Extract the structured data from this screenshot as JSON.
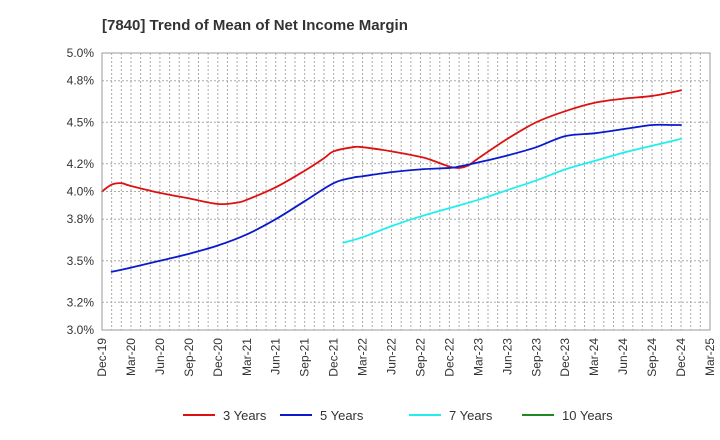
{
  "chart_data": {
    "type": "line",
    "title": "[7840]  Trend of Mean of Net Income Margin",
    "xlabel": "",
    "ylabel": "",
    "x_ticks": [
      "Dec-19",
      "Mar-20",
      "Jun-20",
      "Sep-20",
      "Dec-20",
      "Mar-21",
      "Jun-21",
      "Sep-21",
      "Dec-21",
      "Mar-22",
      "Jun-22",
      "Sep-22",
      "Dec-22",
      "Mar-23",
      "Jun-23",
      "Sep-23",
      "Dec-23",
      "Mar-24",
      "Jun-24",
      "Sep-24",
      "Dec-24",
      "Mar-25"
    ],
    "y_ticks": [
      "3.0%",
      "3.2%",
      "3.5%",
      "3.8%",
      "4.0%",
      "4.2%",
      "4.5%",
      "4.8%",
      "5.0%"
    ],
    "ylim": [
      3.0,
      5.0
    ],
    "grid": true,
    "legend_position": "bottom",
    "series": [
      {
        "name": "3 Years",
        "color": "#dd1111",
        "points": [
          [
            "Dec-19",
            4.0
          ],
          [
            "Jan-20",
            4.05
          ],
          [
            "Feb-20",
            4.06
          ],
          [
            "Mar-20",
            4.04
          ],
          [
            "Jun-20",
            3.99
          ],
          [
            "Sep-20",
            3.95
          ],
          [
            "Dec-20",
            3.91
          ],
          [
            "Feb-21",
            3.92
          ],
          [
            "Mar-21",
            3.94
          ],
          [
            "Jun-21",
            4.03
          ],
          [
            "Sep-21",
            4.15
          ],
          [
            "Nov-21",
            4.24
          ],
          [
            "Dec-21",
            4.29
          ],
          [
            "Feb-22",
            4.32
          ],
          [
            "Mar-22",
            4.32
          ],
          [
            "Jun-22",
            4.29
          ],
          [
            "Sep-22",
            4.25
          ],
          [
            "Oct-22",
            4.23
          ],
          [
            "Dec-22",
            4.18
          ],
          [
            "Jan-23",
            4.17
          ],
          [
            "Feb-23",
            4.19
          ],
          [
            "Mar-23",
            4.24
          ],
          [
            "Jun-23",
            4.38
          ],
          [
            "Sep-23",
            4.5
          ],
          [
            "Dec-23",
            4.58
          ],
          [
            "Mar-24",
            4.64
          ],
          [
            "Jun-24",
            4.67
          ],
          [
            "Sep-24",
            4.69
          ],
          [
            "Dec-24",
            4.73
          ]
        ]
      },
      {
        "name": "5 Years",
        "color": "#0a1acc",
        "points": [
          [
            "Dec-19",
            null
          ],
          [
            "Jan-20",
            3.42
          ],
          [
            "Mar-20",
            3.45
          ],
          [
            "Jun-20",
            3.5
          ],
          [
            "Sep-20",
            3.55
          ],
          [
            "Dec-20",
            3.61
          ],
          [
            "Mar-21",
            3.69
          ],
          [
            "Jun-21",
            3.8
          ],
          [
            "Sep-21",
            3.93
          ],
          [
            "Dec-21",
            4.06
          ],
          [
            "Feb-22",
            4.1
          ],
          [
            "Mar-22",
            4.11
          ],
          [
            "Jun-22",
            4.14
          ],
          [
            "Sep-22",
            4.16
          ],
          [
            "Dec-22",
            4.17
          ],
          [
            "Jan-23",
            4.18
          ],
          [
            "Mar-23",
            4.21
          ],
          [
            "Jun-23",
            4.26
          ],
          [
            "Sep-23",
            4.32
          ],
          [
            "Dec-23",
            4.4
          ],
          [
            "Mar-24",
            4.42
          ],
          [
            "Jun-24",
            4.45
          ],
          [
            "Sep-24",
            4.48
          ],
          [
            "Nov-24",
            4.48
          ],
          [
            "Dec-24",
            4.48
          ]
        ]
      },
      {
        "name": "7 Years",
        "color": "#22eeee",
        "points": [
          [
            "Jan-22",
            3.63
          ],
          [
            "Mar-22",
            3.67
          ],
          [
            "Jun-22",
            3.75
          ],
          [
            "Sep-22",
            3.82
          ],
          [
            "Dec-22",
            3.88
          ],
          [
            "Mar-23",
            3.94
          ],
          [
            "Jun-23",
            4.01
          ],
          [
            "Sep-23",
            4.08
          ],
          [
            "Dec-23",
            4.16
          ],
          [
            "Mar-24",
            4.22
          ],
          [
            "Jun-24",
            4.28
          ],
          [
            "Sep-24",
            4.33
          ],
          [
            "Dec-24",
            4.38
          ]
        ]
      },
      {
        "name": "10 Years",
        "color": "#228822",
        "points": []
      }
    ]
  }
}
